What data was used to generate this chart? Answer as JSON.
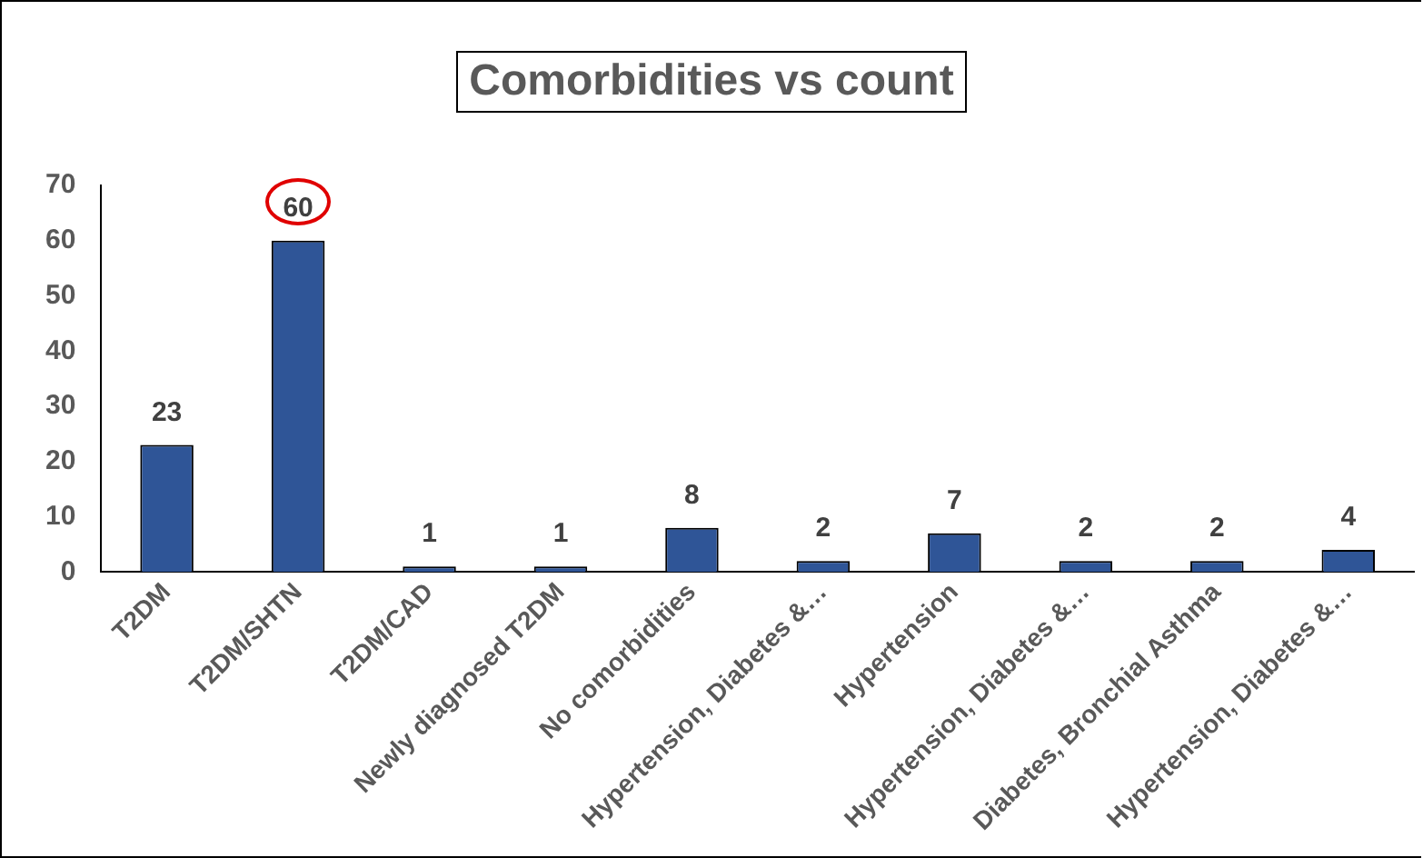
{
  "chart_data": {
    "type": "bar",
    "title": "Comorbidities vs count",
    "categories": [
      "T2DM",
      "T2DM/SHTN",
      "T2DM/CAD",
      "Newly diagnosed T2DM",
      "No comorbidities",
      "Hypertension, Diabetes &…",
      "Hypertension",
      "Hypertension, Diabetes &…",
      "Diabetes, Bronchial Asthma",
      "Hypertension, Diabetes &…"
    ],
    "values": [
      23,
      60,
      1,
      1,
      8,
      2,
      7,
      2,
      2,
      4
    ],
    "color": "#2f5597",
    "ylim": [
      0,
      70
    ],
    "yticks": [
      0,
      10,
      20,
      30,
      40,
      50,
      60,
      70
    ],
    "grid": false,
    "legend": false,
    "data_labels": true
  }
}
